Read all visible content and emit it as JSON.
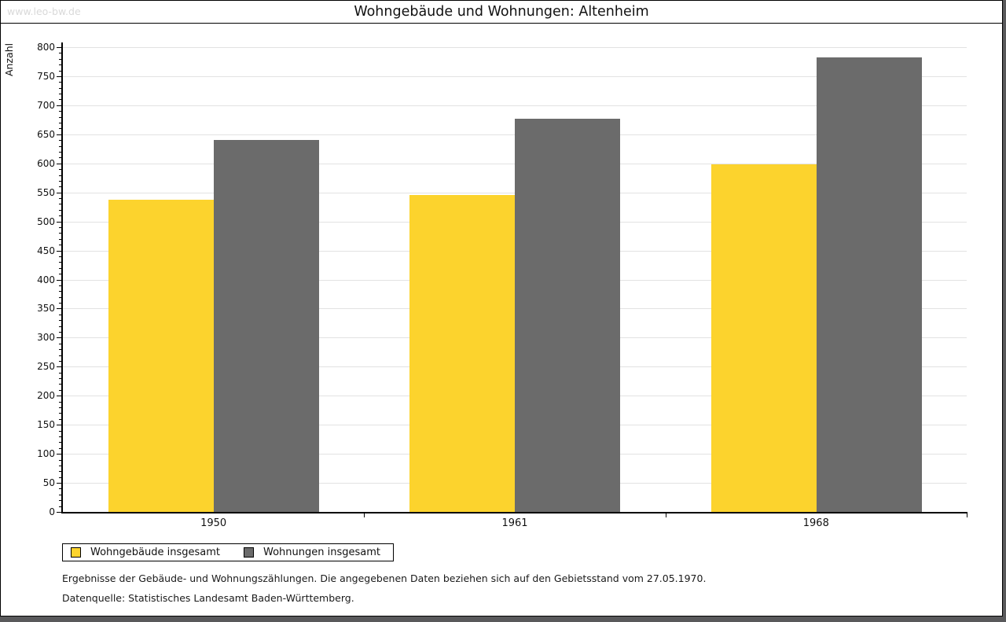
{
  "header": {
    "watermark": "www.leo-bw.de",
    "title": "Wohngebäude und Wohnungen: Altenheim"
  },
  "chart_data": {
    "type": "bar",
    "title": "Wohngebäude und Wohnungen: Altenheim",
    "xlabel": "",
    "ylabel": "Anzahl",
    "categories": [
      "1950",
      "1961",
      "1968"
    ],
    "series": [
      {
        "name": "Wohngebäude insgesamt",
        "color": "#fcd32d",
        "values": [
          538,
          546,
          598
        ]
      },
      {
        "name": "Wohnungen insgesamt",
        "color": "#6b6b6b",
        "values": [
          640,
          677,
          782
        ]
      }
    ],
    "ylim": [
      0,
      800
    ],
    "y_major_step": 50,
    "y_minor_step": 10,
    "grid": true,
    "legend_position": "bottom-left"
  },
  "footer": {
    "note1": "Ergebnisse der Gebäude- und Wohnungszählungen. Die angegebenen Daten beziehen sich auf den Gebietsstand vom 27.05.1970.",
    "note2": "Datenquelle: Statistisches Landesamt Baden-Württemberg."
  }
}
